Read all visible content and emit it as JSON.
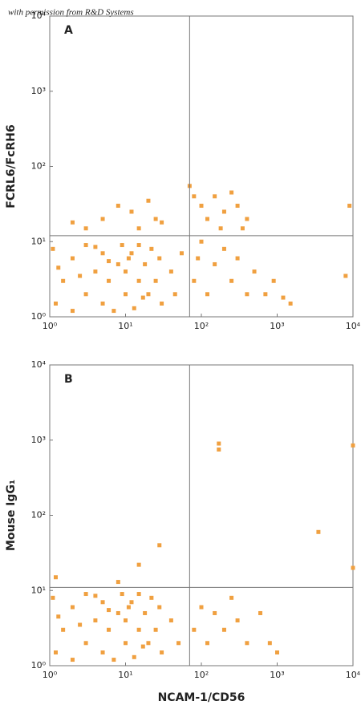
{
  "watermark": "with permission from R&D Systems",
  "chart_data": [
    {
      "type": "scatter",
      "title": "A",
      "ylabel": "FCRL6/FcRH6",
      "color": "#f0a040",
      "log": true,
      "xlim": [
        1,
        10000
      ],
      "ylim": [
        1,
        10000
      ],
      "xticks": [
        {
          "value": 1,
          "label": "10⁰"
        },
        {
          "value": 10,
          "label": "10¹"
        },
        {
          "value": 100,
          "label": "10²"
        },
        {
          "value": 1000,
          "label": "10³"
        },
        {
          "value": 10000,
          "label": "10⁴"
        }
      ],
      "yticks": [
        {
          "value": 1,
          "label": "10⁰"
        },
        {
          "value": 10,
          "label": "10¹"
        },
        {
          "value": 100,
          "label": "10²"
        },
        {
          "value": 1000,
          "label": "10³"
        },
        {
          "value": 10000,
          "label": "10⁴"
        }
      ],
      "quadrant_x": 70,
      "quadrant_y": 12,
      "x": [
        1.2,
        1.5,
        2,
        2,
        3,
        3,
        4,
        5,
        5,
        6,
        7,
        8,
        9,
        10,
        10,
        12,
        13,
        15,
        15,
        18,
        20,
        22,
        25,
        28,
        30,
        1.1,
        1.3,
        2.5,
        4,
        6,
        11,
        17,
        40,
        45,
        55,
        80,
        90,
        100,
        120,
        150,
        200,
        250,
        300,
        400,
        500,
        700,
        900,
        1200,
        1500,
        8000,
        5,
        8,
        12,
        15,
        20,
        25,
        30,
        3,
        100,
        120,
        150,
        200,
        250,
        300,
        400,
        70,
        80,
        180,
        9000,
        350,
        2
      ],
      "values": [
        1.5,
        3,
        1.2,
        6,
        2,
        9,
        4,
        1.5,
        7,
        3,
        1.2,
        5,
        9,
        2,
        4,
        7,
        1.3,
        3,
        9,
        5,
        2,
        8,
        3,
        6,
        1.5,
        8,
        4.5,
        3.5,
        8.5,
        5.5,
        6,
        1.8,
        4,
        2,
        7,
        3,
        6,
        10,
        2,
        5,
        8,
        3,
        6,
        2,
        4,
        2,
        3,
        1.8,
        1.5,
        3.5,
        20,
        30,
        25,
        15,
        35,
        20,
        18,
        15,
        30,
        20,
        40,
        25,
        45,
        30,
        20,
        55,
        40,
        15,
        30,
        15,
        18
      ]
    },
    {
      "type": "scatter",
      "title": "B",
      "ylabel": "Mouse IgG₁",
      "xlabel": "NCAM-1/CD56",
      "color": "#f0a040",
      "log": true,
      "xlim": [
        1,
        10000
      ],
      "ylim": [
        1,
        10000
      ],
      "xticks": [
        {
          "value": 1,
          "label": "10⁰"
        },
        {
          "value": 10,
          "label": "10¹"
        },
        {
          "value": 100,
          "label": "10²"
        },
        {
          "value": 1000,
          "label": "10³"
        },
        {
          "value": 10000,
          "label": "10⁴"
        }
      ],
      "yticks": [
        {
          "value": 1,
          "label": "10⁰"
        },
        {
          "value": 10,
          "label": "10¹"
        },
        {
          "value": 100,
          "label": "10²"
        },
        {
          "value": 1000,
          "label": "10³"
        },
        {
          "value": 10000,
          "label": "10⁴"
        }
      ],
      "quadrant_x": 70,
      "quadrant_y": 11,
      "x": [
        1.2,
        1.5,
        2,
        2,
        3,
        3,
        4,
        5,
        5,
        6,
        7,
        8,
        9,
        10,
        10,
        12,
        13,
        15,
        15,
        18,
        20,
        22,
        25,
        28,
        30,
        1.1,
        1.3,
        2.5,
        4,
        6,
        11,
        17,
        40,
        50,
        80,
        100,
        120,
        150,
        200,
        250,
        300,
        400,
        600,
        800,
        1000,
        170,
        170,
        10000,
        3500,
        28,
        15,
        10000,
        1.2,
        8
      ],
      "values": [
        1.5,
        3,
        1.2,
        6,
        2,
        9,
        4,
        1.5,
        7,
        3,
        1.2,
        5,
        9,
        2,
        4,
        7,
        1.3,
        3,
        9,
        5,
        2,
        8,
        3,
        6,
        1.5,
        8,
        4.5,
        3.5,
        8.5,
        5.5,
        6,
        1.8,
        4,
        2,
        3,
        6,
        2,
        5,
        3,
        8,
        4,
        2,
        5,
        2,
        1.5,
        900,
        750,
        850,
        60,
        40,
        22,
        20,
        15,
        13
      ]
    }
  ]
}
